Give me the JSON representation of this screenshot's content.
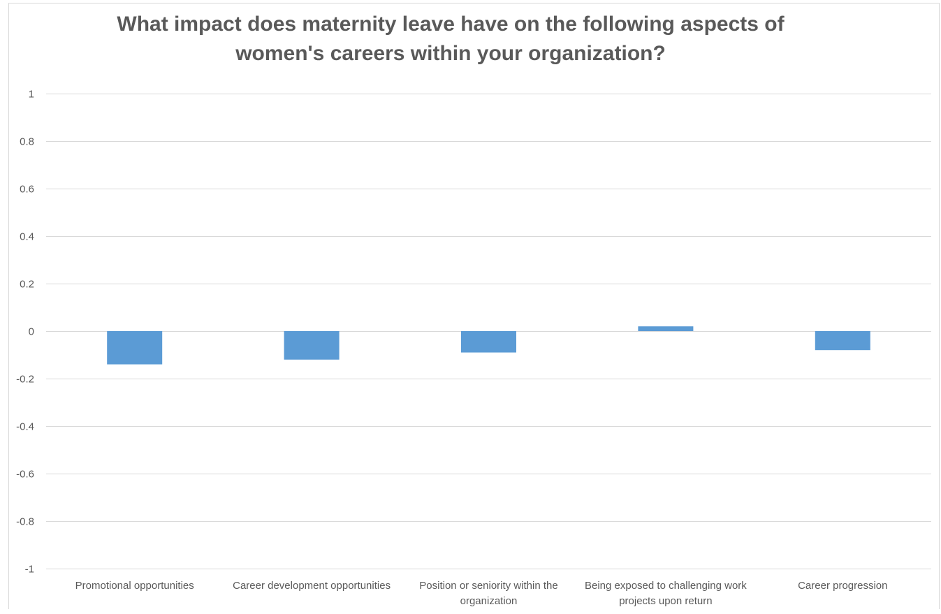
{
  "chart_data": {
    "type": "bar",
    "title": "What impact does maternity leave have on the following aspects of women's careers within your organization?",
    "title_lines": [
      "What impact does maternity leave have on the following aspects of",
      "women's careers within your organization?"
    ],
    "categories": [
      "Promotional opportunities",
      "Career development opportunities",
      "Position or seniority within the organization",
      "Being exposed to challenging work projects upon return",
      "Career progression"
    ],
    "category_label_lines": [
      [
        "Promotional opportunities"
      ],
      [
        "Career development opportunities"
      ],
      [
        "Position or seniority within the",
        "organization"
      ],
      [
        "Being exposed to challenging work",
        "projects upon return"
      ],
      [
        "Career progression"
      ]
    ],
    "values": [
      -0.14,
      -0.12,
      -0.09,
      0.02,
      -0.08
    ],
    "ylim": [
      -1,
      1
    ],
    "y_ticks": [
      1,
      0.8,
      0.6,
      0.4,
      0.2,
      0,
      -0.2,
      -0.4,
      -0.6,
      -0.8,
      -1
    ],
    "y_tick_labels": [
      "1",
      "0.8",
      "0.6",
      "0.4",
      "0.2",
      "0",
      "-0.2",
      "-0.4",
      "-0.6",
      "-0.8",
      "-1"
    ],
    "xlabel": "",
    "ylabel": "",
    "grid": true,
    "legend": "none",
    "colors": {
      "bar": "#5b9bd5",
      "grid": "#d9d9d9",
      "text": "#595959"
    }
  }
}
